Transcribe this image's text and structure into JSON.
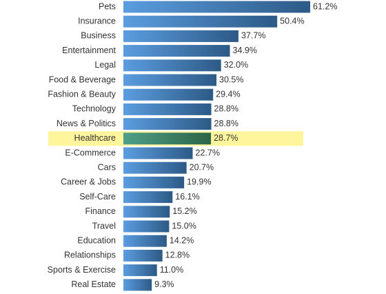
{
  "chart_data": {
    "type": "barh",
    "categories": [
      "Pets",
      "Insurance",
      "Business",
      "Entertainment",
      "Legal",
      "Food & Beverage",
      "Fashion & Beauty",
      "Technology",
      "News & Politics",
      "Healthcare",
      "E-Commerce",
      "Cars",
      "Career & Jobs",
      "Self-Care",
      "Finance",
      "Travel",
      "Education",
      "Relationships",
      "Sports & Exercise",
      "Real Estate"
    ],
    "values": [
      61.2,
      50.4,
      37.7,
      34.9,
      32.0,
      30.5,
      29.4,
      28.8,
      28.8,
      28.7,
      22.7,
      20.7,
      19.9,
      16.1,
      15.2,
      15.0,
      14.2,
      12.8,
      11.0,
      9.3
    ],
    "value_labels": [
      "61.2%",
      "50.4%",
      "37.7%",
      "34.9%",
      "32.0%",
      "30.5%",
      "29.4%",
      "28.8%",
      "28.8%",
      "28.7%",
      "22.7%",
      "20.7%",
      "19.9%",
      "16.1%",
      "15.2%",
      "15.0%",
      "14.2%",
      "12.8%",
      "11.0%",
      "9.3%"
    ],
    "color": "#3d7cc0",
    "highlight": 9,
    "highlight_color": "#3f8f70",
    "highlight_band_color": "#fff59d"
  }
}
